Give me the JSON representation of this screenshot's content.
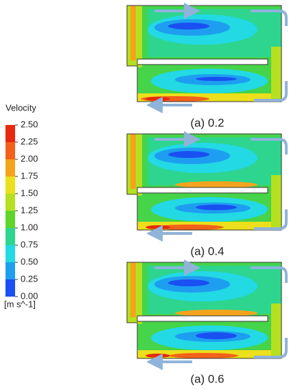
{
  "legend": {
    "title": "Velocity",
    "ticks": [
      "2.50",
      "2.25",
      "2.00",
      "1.75",
      "1.50",
      "1.25",
      "1.00",
      "0.75",
      "0.50",
      "0.25",
      "0.00"
    ],
    "unit": "[m s^-1]"
  },
  "panels": [
    {
      "caption": "(a)  0.2"
    },
    {
      "caption": "(a)  0.4"
    },
    {
      "caption": "(a)  0.6"
    }
  ]
}
